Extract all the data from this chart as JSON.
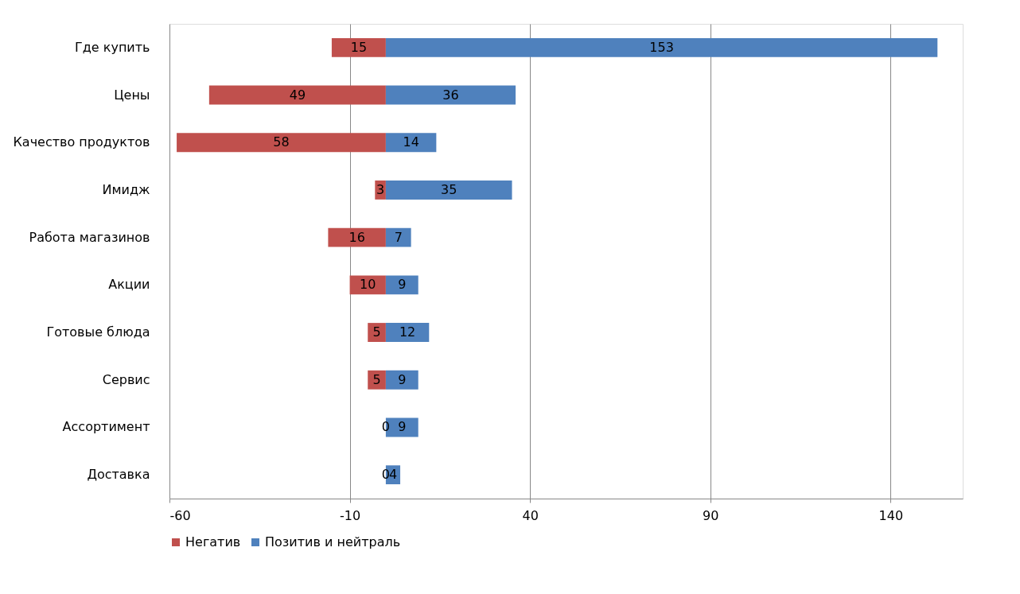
{
  "chart_data": {
    "type": "bar",
    "orientation": "horizontal",
    "categories": [
      "Где купить",
      "Цены",
      "Качество продуктов",
      "Имидж",
      "Работа магазинов",
      "Акции",
      "Готовые блюда",
      "Сервис",
      "Ассортимент",
      "Доставка"
    ],
    "series": [
      {
        "name": "Негатив",
        "color": "#c0504d",
        "values": [
          15,
          49,
          58,
          3,
          16,
          10,
          5,
          5,
          0,
          0
        ],
        "base": [
          -15,
          -49,
          -58,
          -3,
          -16,
          -10,
          -5,
          -5,
          null,
          null
        ]
      },
      {
        "name": "Позитив и нейтраль",
        "color": "#4f81bd",
        "values": [
          153,
          36,
          14,
          35,
          7,
          9,
          12,
          9,
          9,
          4
        ]
      }
    ],
    "data_labels": true,
    "xlim": [
      -60,
      160
    ],
    "xticks": [
      -60,
      -10,
      40,
      90,
      140
    ],
    "grid": "x",
    "legend": "bottom"
  }
}
